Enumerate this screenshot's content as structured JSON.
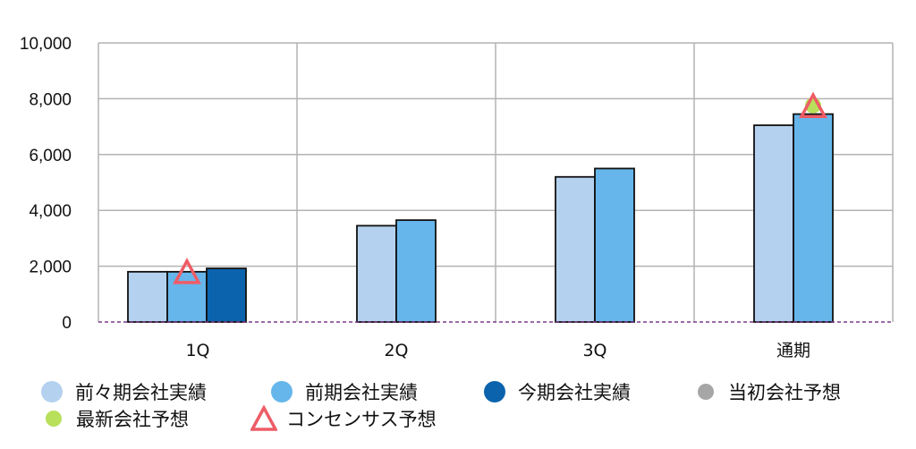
{
  "chart_data": {
    "type": "bar",
    "categories": [
      "1Q",
      "2Q",
      "3Q",
      "通期"
    ],
    "ylim": [
      0,
      10000
    ],
    "yticks": [
      "0",
      "2,000",
      "4,000",
      "6,000",
      "8,000",
      "10,000"
    ],
    "grid": true,
    "legend_position": "bottom",
    "series": [
      {
        "name": "前々期会社実績",
        "color": "#b4d2ef",
        "values": [
          1800,
          3450,
          5200,
          7050
        ]
      },
      {
        "name": "前期会社実績",
        "color": "#66b6ec",
        "values": [
          1800,
          3650,
          5500,
          7450
        ]
      },
      {
        "name": "今期会社実績",
        "color": "#0b63ad",
        "values": [
          1920,
          null,
          null,
          null
        ]
      },
      {
        "name": "当初会社予想",
        "color": "#a6a6a6",
        "values": [
          null,
          null,
          null,
          null
        ]
      },
      {
        "name": "最新会社予想",
        "color": "#b8e05a",
        "values": [
          null,
          null,
          null,
          7700
        ]
      },
      {
        "name": "コンセンサス予想",
        "color": "#ee5c66",
        "values": [
          1800,
          null,
          null,
          7750
        ]
      }
    ]
  },
  "legend": [
    {
      "label": "前々期会社実績",
      "marker": "circle",
      "color": "#b4d2ef"
    },
    {
      "label": "前期会社実績",
      "marker": "circle",
      "color": "#66b6ec"
    },
    {
      "label": "今期会社実績",
      "marker": "circle",
      "color": "#0b63ad"
    },
    {
      "label": "当初会社予想",
      "marker": "circle",
      "color": "#a6a6a6"
    },
    {
      "label": "最新会社予想",
      "marker": "circle",
      "color": "#b8e05a"
    },
    {
      "label": "コンセンサス予想",
      "marker": "triangle",
      "color": "#ee5c66"
    }
  ]
}
